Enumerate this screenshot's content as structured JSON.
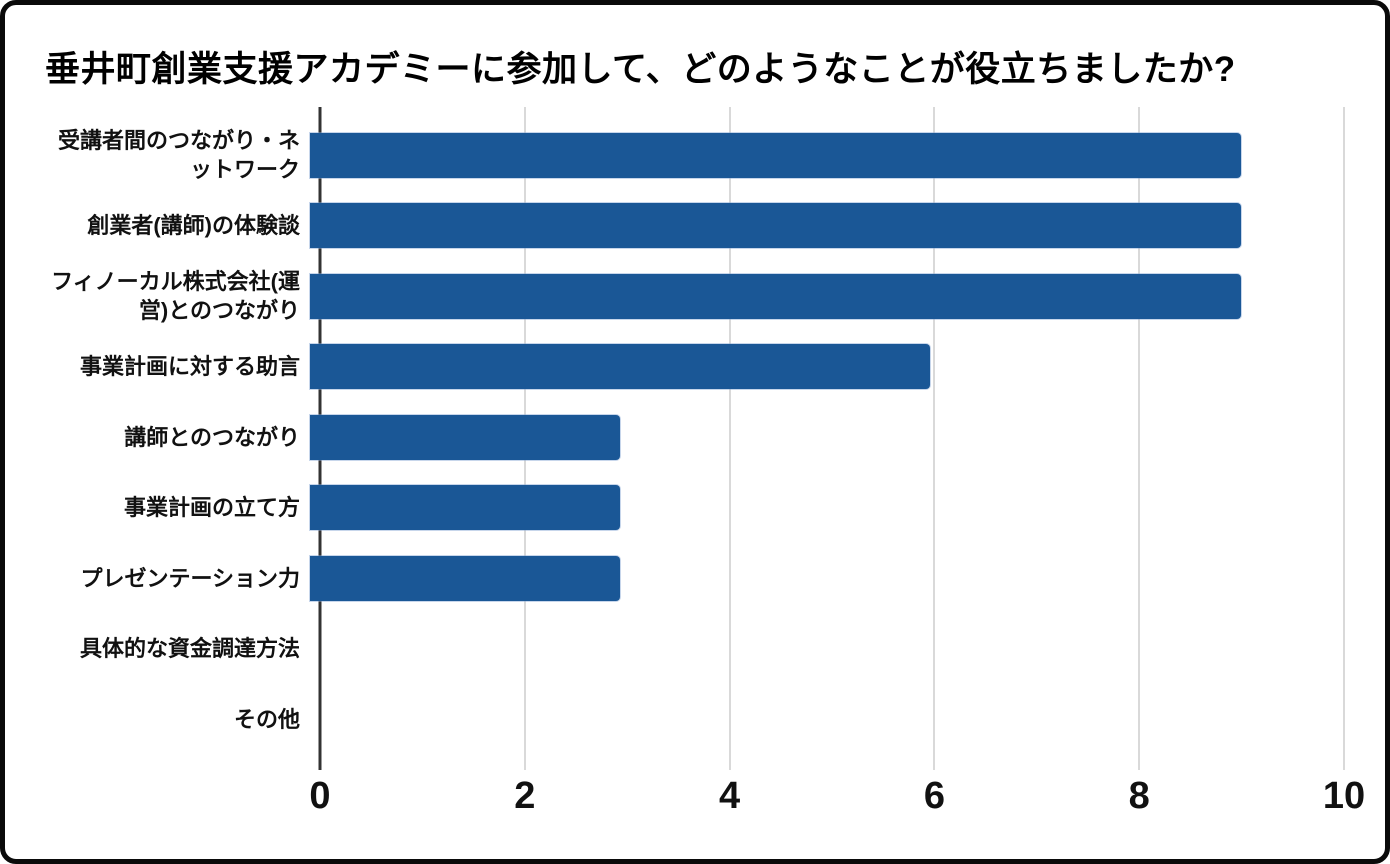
{
  "title": "垂井町創業支援アカデミーに参加して、どのようなことが役立ちましたか?",
  "colors": {
    "bar": "#1a5796",
    "axis_line": "#333333",
    "gridline": "#d9d9d9",
    "text": "#111111",
    "frame_border": "#0a0a0a",
    "background": "#ffffff"
  },
  "chart_data": {
    "type": "bar",
    "orientation": "horizontal",
    "title": "垂井町創業支援アカデミーに参加して、どのようなことが役立ちましたか?",
    "categories": [
      "受講者間のつながり・ネットワーク",
      "創業者(講師)の体験談",
      "フィノーカル株式会社(運営)とのつながり",
      "事業計画に対する助言",
      "講師とのつながり",
      "事業計画の立て方",
      "プレゼンテーション力",
      "具体的な資金調達方法",
      "その他"
    ],
    "values": [
      9,
      9,
      9,
      6,
      3,
      3,
      3,
      0,
      0
    ],
    "xlabel": "",
    "ylabel": "",
    "xlim": [
      0,
      10
    ],
    "xticks": [
      0,
      2,
      4,
      6,
      8,
      10
    ],
    "grid": true,
    "legend": false
  }
}
